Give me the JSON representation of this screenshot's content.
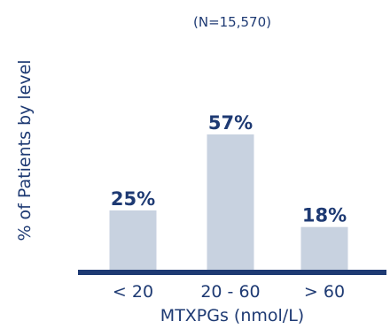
{
  "chart_data": {
    "type": "bar",
    "subtitle": "(N=15,570)",
    "ylabel": "% of Patients by level",
    "xlabel": "MTXPGs (nmol/L)",
    "categories": [
      "< 20",
      "20 - 60",
      "> 60"
    ],
    "values": [
      25,
      57,
      18
    ],
    "data_labels": [
      "25%",
      "57%",
      "18%"
    ],
    "ylim": [
      0,
      60
    ],
    "grid": false,
    "colors": {
      "bar": "#c8d2e0",
      "axis": "#1e3a73",
      "text": "#1e3a73"
    }
  }
}
